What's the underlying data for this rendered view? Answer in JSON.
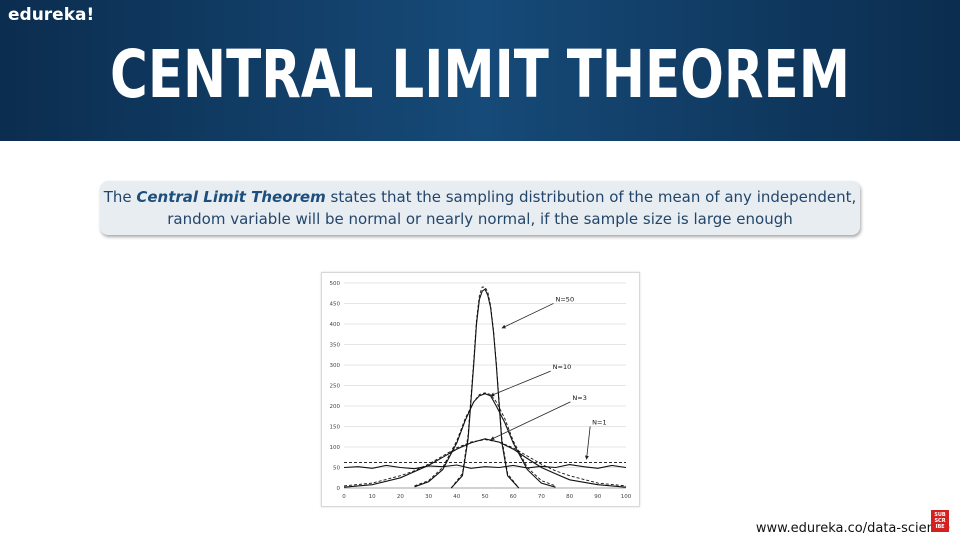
{
  "header": {
    "brand": "edureka!",
    "title": "CENTRAL LIMIT THEOREM"
  },
  "callout": {
    "prefix": "The ",
    "term": "Central Limit Theorem",
    "line1_rest": " states that the sampling distribution of the mean of any independent,",
    "line2": "random variable will be normal or nearly normal, if the sample size is large enough"
  },
  "footer": {
    "url": "www.edureka.co/data-science",
    "subscribe_badge": "SUBSCRIBE"
  },
  "chart_data": {
    "type": "line",
    "xlim": [
      0,
      100
    ],
    "ylim": [
      0,
      500
    ],
    "xticks": [
      0,
      10,
      20,
      30,
      40,
      50,
      60,
      70,
      80,
      90,
      100
    ],
    "yticks": [
      0,
      50,
      100,
      150,
      200,
      250,
      300,
      350,
      400,
      450,
      500
    ],
    "grid": "horizontal",
    "series": [
      {
        "name": "N=1",
        "x": [
          0,
          5,
          10,
          15,
          20,
          25,
          30,
          35,
          40,
          45,
          50,
          55,
          60,
          65,
          70,
          75,
          80,
          85,
          90,
          95,
          100
        ],
        "values": [
          50,
          52,
          48,
          55,
          50,
          47,
          54,
          52,
          56,
          48,
          52,
          50,
          55,
          49,
          53,
          50,
          57,
          52,
          48,
          55,
          50
        ],
        "fit": [
          62,
          62,
          62,
          62,
          62,
          62,
          62,
          62,
          62,
          62,
          62,
          62,
          62,
          62,
          62,
          62,
          62,
          62,
          62,
          62,
          62
        ]
      },
      {
        "name": "N=3",
        "x": [
          0,
          10,
          20,
          25,
          30,
          35,
          40,
          45,
          50,
          55,
          60,
          65,
          70,
          75,
          80,
          90,
          100
        ],
        "values": [
          2,
          8,
          25,
          40,
          55,
          75,
          95,
          110,
          120,
          112,
          95,
          72,
          50,
          35,
          20,
          8,
          2
        ],
        "fit": [
          5,
          12,
          30,
          42,
          58,
          78,
          98,
          112,
          118,
          112,
          98,
          78,
          58,
          42,
          30,
          12,
          5
        ]
      },
      {
        "name": "N=10",
        "x": [
          25,
          30,
          35,
          40,
          43,
          46,
          48,
          50,
          52,
          54,
          57,
          60,
          65,
          70,
          75
        ],
        "values": [
          3,
          15,
          45,
          110,
          165,
          210,
          225,
          230,
          225,
          200,
          160,
          110,
          45,
          12,
          2
        ],
        "fit": [
          5,
          18,
          50,
          115,
          170,
          210,
          228,
          232,
          228,
          210,
          170,
          115,
          50,
          18,
          5
        ]
      },
      {
        "name": "N=50",
        "x": [
          38,
          42,
          44,
          46,
          47,
          48,
          49,
          50,
          51,
          52,
          53,
          54,
          56,
          58,
          62
        ],
        "values": [
          0,
          30,
          120,
          300,
          400,
          460,
          480,
          485,
          470,
          440,
          380,
          300,
          110,
          30,
          0
        ],
        "fit": [
          0,
          35,
          130,
          310,
          410,
          470,
          490,
          490,
          478,
          445,
          385,
          305,
          120,
          35,
          0
        ]
      }
    ],
    "annotations": [
      {
        "label": "N=50",
        "label_at": [
          75,
          455
        ],
        "arrow_to": [
          56,
          390
        ]
      },
      {
        "label": "N=10",
        "label_at": [
          74,
          290
        ],
        "arrow_to": [
          52,
          225
        ]
      },
      {
        "label": "N=3",
        "label_at": [
          81,
          215
        ],
        "arrow_to": [
          52,
          118
        ]
      },
      {
        "label": "N=1",
        "label_at": [
          88,
          155
        ],
        "arrow_to": [
          86,
          70
        ]
      }
    ]
  }
}
